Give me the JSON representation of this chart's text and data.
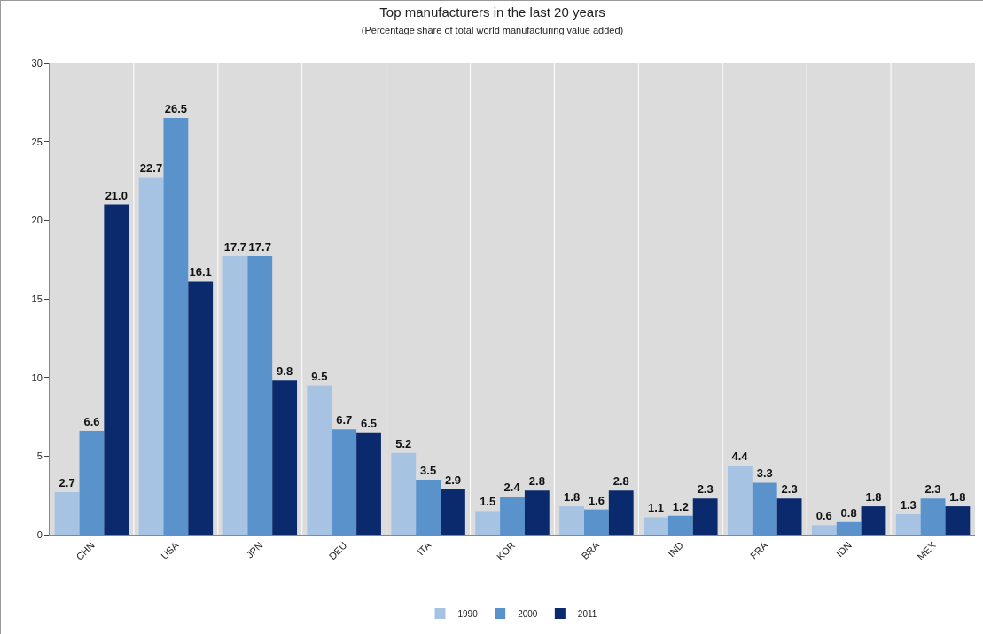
{
  "chart_data": {
    "type": "bar",
    "title": "Top manufacturers in the last 20 years",
    "subtitle": "(Percentage share of total world manufacturing value added)",
    "categories": [
      "CHN",
      "USA",
      "JPN",
      "DEU",
      "ITA",
      "KOR",
      "BRA",
      "IND",
      "FRA",
      "IDN",
      "MEX"
    ],
    "series": [
      {
        "name": "1990",
        "color": "#a7c3e3",
        "values": [
          2.7,
          22.7,
          17.7,
          9.5,
          5.2,
          1.5,
          1.8,
          1.1,
          4.4,
          0.6,
          1.3
        ],
        "value_labels": [
          "2.7",
          "22.7",
          "17.7",
          "9.5",
          "5.2",
          "1.5",
          "1.8",
          "1.1",
          "4.4",
          "0.6",
          "1.3"
        ]
      },
      {
        "name": "2000",
        "color": "#5a93cc",
        "values": [
          6.6,
          26.5,
          17.7,
          6.7,
          3.5,
          2.4,
          1.6,
          1.2,
          3.3,
          0.8,
          2.3
        ],
        "value_labels": [
          "6.6",
          "26.5",
          "17.7",
          "6.7",
          "3.5",
          "2.4",
          "1.6",
          "1.2",
          "3.3",
          "0.8",
          "2.3"
        ]
      },
      {
        "name": "2011",
        "color": "#0b2a6e",
        "values": [
          21,
          16.1,
          9.8,
          6.5,
          2.9,
          2.8,
          2.8,
          2.3,
          2.3,
          1.8,
          1.8
        ],
        "value_labels": [
          "21.0",
          "16.1",
          "9.8",
          "6.5",
          "2.9",
          "2.8",
          "2.8",
          "2.3",
          "2.3",
          "1.8",
          "1.8"
        ]
      }
    ],
    "ylim": [
      0,
      30
    ],
    "yticks": [
      0,
      5,
      10,
      15,
      20,
      25,
      30
    ],
    "grid": "x",
    "legend": "bottom"
  }
}
